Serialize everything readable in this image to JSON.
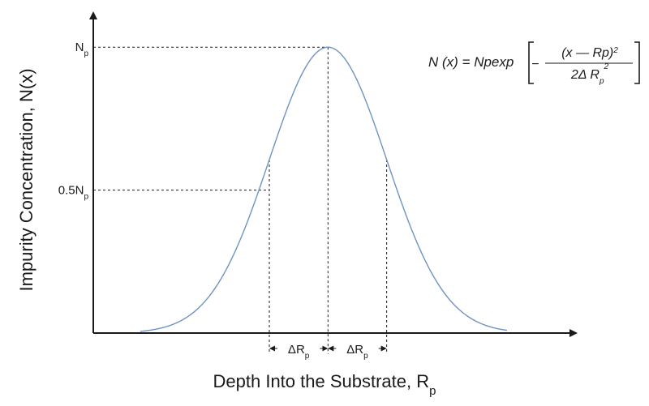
{
  "chart_data": {
    "type": "line",
    "title": "",
    "xlabel": "Depth Into the Substrate, R",
    "xlabel_sub": "p",
    "ylabel": "Impurity Concentration, N(x)",
    "ylim": [
      0,
      1.08
    ],
    "xlim": [
      -4.0,
      3.95
    ],
    "grid": false,
    "series": [
      {
        "name": "",
        "peak": 1.0,
        "mean": 0.0,
        "sigma": 1.0,
        "x_range": [
          -3.2,
          3.05
        ],
        "color": "#6f93c2"
      }
    ],
    "y_ticks": [
      {
        "value": 1.0,
        "label": "N",
        "sub": "p"
      },
      {
        "value": 0.5,
        "label": "0.5N",
        "sub": "p"
      }
    ],
    "x_markers": [
      -1.0,
      0.0,
      1.0
    ],
    "delta_labels": [
      {
        "from": -1.0,
        "to": 0.0,
        "label": "ΔR",
        "sub": "p"
      },
      {
        "from": 0.0,
        "to": 1.0,
        "label": "ΔR",
        "sub": "p"
      }
    ],
    "annotation": {
      "lhs": "N (x) = Npexp",
      "minus": "−",
      "numerator": "(x — Rp)",
      "numerator_sup": "2",
      "denominator": "2Δ R",
      "denominator_sub": "p",
      "denominator_sup": "2"
    }
  }
}
